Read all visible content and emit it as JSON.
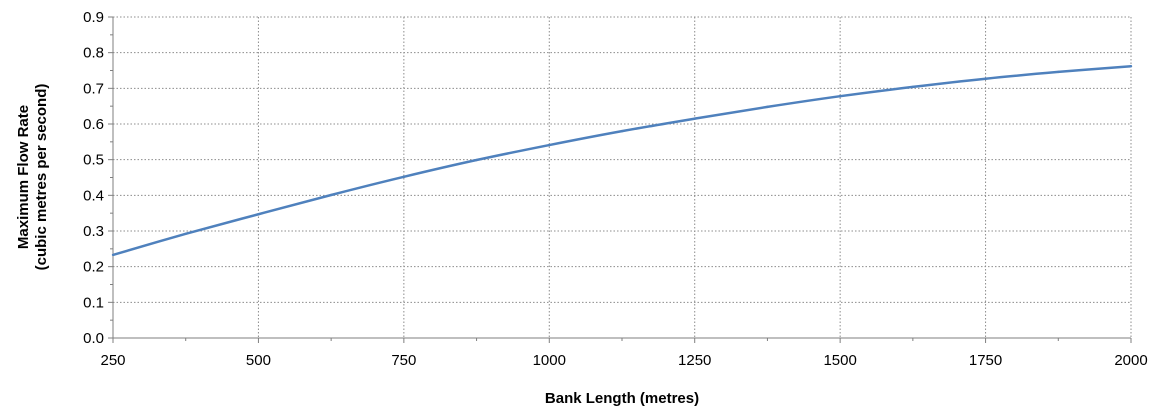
{
  "colors": {
    "line": "#4F81BD",
    "grid": "#8C8C8C",
    "axis": "#7F7F7F",
    "background": "#FFFFFF"
  },
  "chart_data": {
    "type": "line",
    "title": "",
    "xlabel": "Bank Length (metres)",
    "ylabel_line1": "Maximum Flow Rate",
    "ylabel_line2": "(cubic metres per second)",
    "xlim": [
      250,
      2000
    ],
    "ylim": [
      0,
      0.9
    ],
    "x_ticks": [
      250,
      500,
      750,
      1000,
      1250,
      1500,
      1750,
      2000
    ],
    "x_tick_labels": [
      "250",
      "500",
      "750",
      "1000",
      "1250",
      "1500",
      "1750",
      "2000"
    ],
    "y_ticks": [
      0,
      0.1,
      0.2,
      0.3,
      0.4,
      0.5,
      0.6,
      0.7,
      0.8,
      0.9
    ],
    "y_tick_labels": [
      "0.0",
      "0.1",
      "0.2",
      "0.3",
      "0.4",
      "0.5",
      "0.6",
      "0.7",
      "0.8",
      "0.9"
    ],
    "grid": true,
    "legend": "none",
    "series": [
      {
        "x": [
          250,
          375,
          500,
          625,
          750,
          875,
          1000,
          1125,
          1250,
          1375,
          1500,
          1625,
          1750,
          1875,
          2000
        ],
        "values": [
          0.233,
          0.292,
          0.347,
          0.401,
          0.452,
          0.499,
          0.541,
          0.58,
          0.615,
          0.648,
          0.678,
          0.704,
          0.727,
          0.746,
          0.762
        ]
      }
    ]
  }
}
